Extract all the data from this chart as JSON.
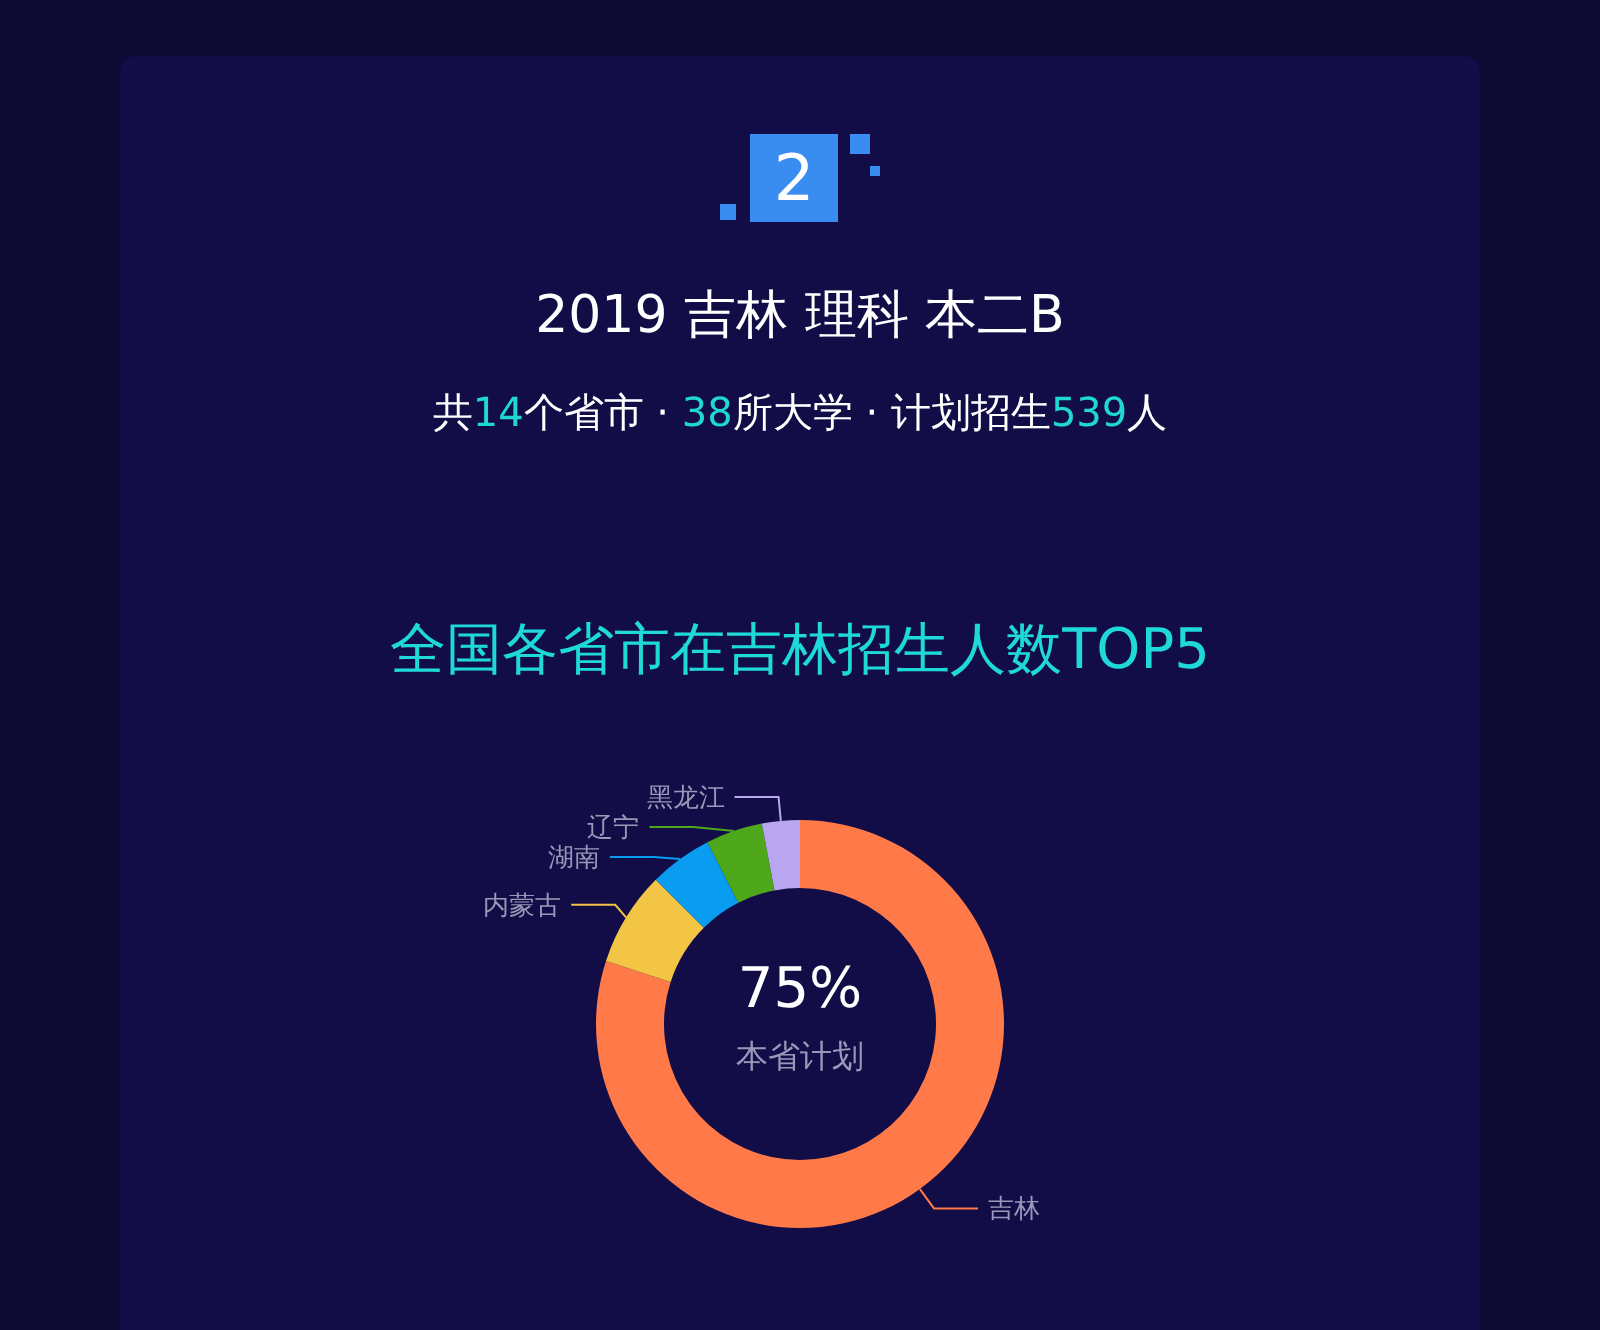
{
  "chart_data": {
    "type": "donut",
    "title": "全国各省市在吉林招生人数TOP5",
    "subtitle": "2019 吉林 理科 本二B",
    "annotations": [
      "2",
      "共14个省市 · 38所大学 · 计划招生539人",
      "75%",
      "本省计划"
    ],
    "categories": [
      "吉林",
      "内蒙古",
      "湖南",
      "辽宁",
      "黑龙江"
    ],
    "values": [
      80,
      7.5,
      5,
      4.5,
      3
    ],
    "colors": [
      "#ff7a48",
      "#f3c545",
      "#0a9cf0",
      "#4fa81c",
      "#b8a6f0"
    ],
    "legend": false
  }
}
